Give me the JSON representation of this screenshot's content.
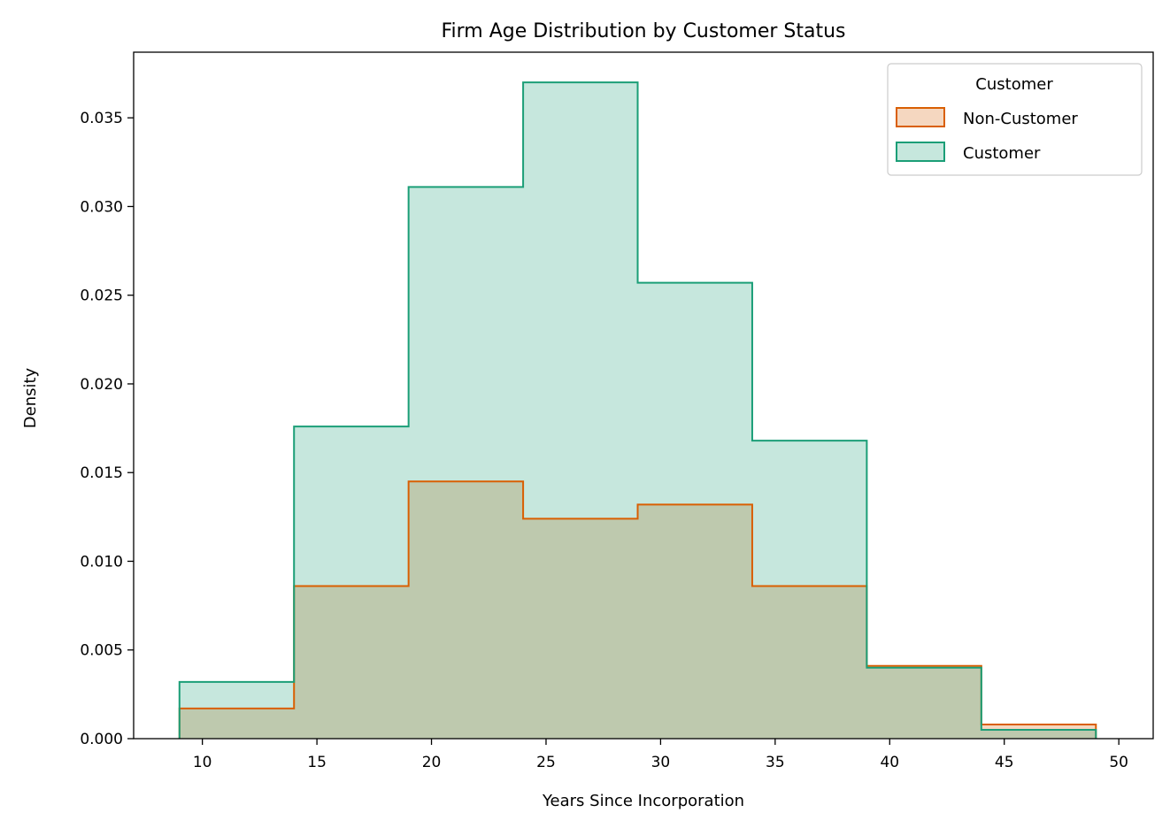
{
  "chart_data": {
    "type": "histogram-step",
    "title": "Firm Age Distribution by Customer Status",
    "xlabel": "Years Since Incorporation",
    "ylabel": "Density",
    "xlim": [
      7,
      51.5
    ],
    "ylim": [
      0,
      0.0387
    ],
    "xticks": [
      10,
      15,
      20,
      25,
      30,
      35,
      40,
      45,
      50
    ],
    "yticks": [
      0.0,
      0.005,
      0.01,
      0.015,
      0.02,
      0.025,
      0.03,
      0.035
    ],
    "ytick_labels": [
      "0.000",
      "0.005",
      "0.010",
      "0.015",
      "0.020",
      "0.025",
      "0.030",
      "0.035"
    ],
    "bin_edges": [
      9,
      14,
      19,
      24,
      29,
      34,
      39,
      44,
      49
    ],
    "grid": false,
    "legend": {
      "title": "Customer",
      "placement": "top-right"
    },
    "series": [
      {
        "name": "Non-Customer",
        "line_color": "#d95f02",
        "fill_color": "#d95f02",
        "values": [
          0.0017,
          0.0086,
          0.0145,
          0.0124,
          0.0132,
          0.0086,
          0.0041,
          0.0008
        ]
      },
      {
        "name": "Customer",
        "line_color": "#1b9e77",
        "fill_color": "#1b9e77",
        "values": [
          0.0032,
          0.0176,
          0.0311,
          0.037,
          0.0257,
          0.0168,
          0.004,
          0.0005
        ]
      }
    ]
  }
}
